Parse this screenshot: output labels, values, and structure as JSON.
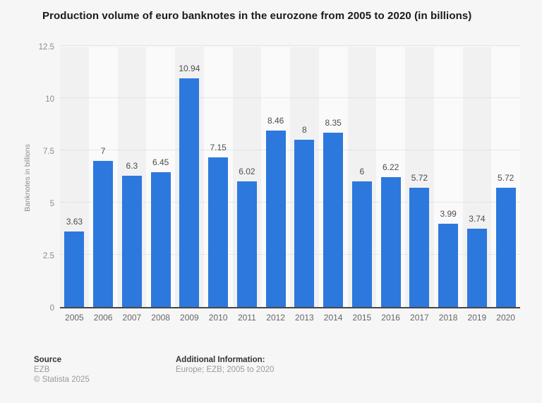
{
  "chart_data": {
    "type": "bar",
    "title": "Production volume of euro banknotes in the eurozone from 2005 to 2020 (in billions)",
    "categories": [
      "2005",
      "2006",
      "2007",
      "2008",
      "2009",
      "2010",
      "2011",
      "2012",
      "2013",
      "2014",
      "2015",
      "2016",
      "2017",
      "2018",
      "2019",
      "2020"
    ],
    "values": [
      3.63,
      7,
      6.3,
      6.45,
      10.94,
      7.15,
      6.02,
      8.46,
      8,
      8.35,
      6,
      6.22,
      5.72,
      3.99,
      3.74,
      5.72
    ],
    "value_labels": [
      "3.63",
      "7",
      "6.3",
      "6.45",
      "10.94",
      "7.15",
      "6.02",
      "8.46",
      "8",
      "8.35",
      "6",
      "6.22",
      "5.72",
      "3.99",
      "3.74",
      "5.72"
    ],
    "xlabel": "",
    "ylabel": "Banknotes in billions",
    "ylim": [
      0,
      12.5
    ],
    "yticks": [
      "0",
      "2.5",
      "5",
      "7.5",
      "10",
      "12.5"
    ],
    "grid": "horizontal-dotted",
    "legend_position": "none",
    "bar_color": "#2d78dd",
    "band_color_dark": "#f1f1f1",
    "band_color_light": "#fafafa"
  },
  "footer": {
    "source_label": "Source",
    "source_value": "EZB",
    "copyright": "© Statista 2025",
    "additional_label": "Additional Information:",
    "additional_value": "Europe; EZB; 2005 to 2020"
  }
}
